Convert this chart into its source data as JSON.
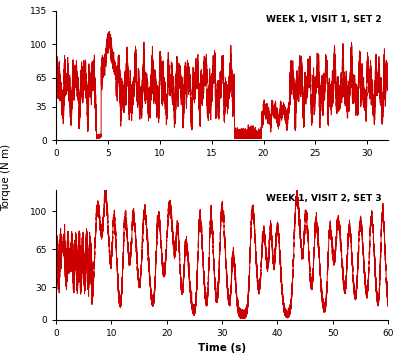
{
  "title1": "WEEK 1, VISIT 1, SET 2",
  "title2": "WEEK 1, VISIT 2, SET 3",
  "ylabel": "Torque (N m)",
  "xlabel": "Time (s)",
  "line_color": "#CC0000",
  "line_width": 0.7,
  "plot1_xlim": [
    0,
    32
  ],
  "plot1_ylim": [
    0,
    135
  ],
  "plot1_yticks": [
    0,
    35,
    65,
    100,
    135
  ],
  "plot1_xticks": [
    0,
    5,
    10,
    15,
    20,
    25,
    30
  ],
  "plot2_xlim": [
    0,
    60
  ],
  "plot2_ylim": [
    0,
    120
  ],
  "plot2_yticks": [
    0,
    30,
    65,
    100
  ],
  "plot2_xticks": [
    0,
    10,
    20,
    30,
    40,
    50,
    60
  ],
  "bg_color": "#FFFFFF"
}
